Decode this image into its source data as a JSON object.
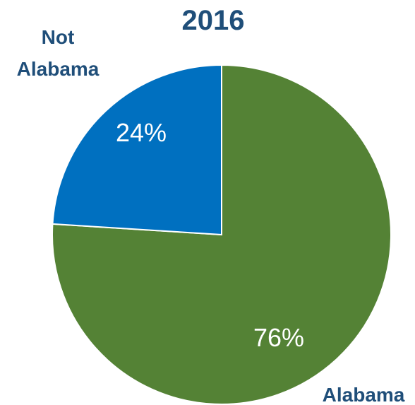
{
  "chart_data": {
    "type": "pie",
    "title": "2016",
    "slices": [
      {
        "label": "Alabama",
        "value": 76,
        "value_label": "76%",
        "color": "#548235"
      },
      {
        "label": [
          "Not",
          "Alabama"
        ],
        "value": 24,
        "value_label": "24%",
        "color": "#0070C0"
      }
    ],
    "label_color": "#1F4E79",
    "slice_border_color": "#ffffff"
  }
}
